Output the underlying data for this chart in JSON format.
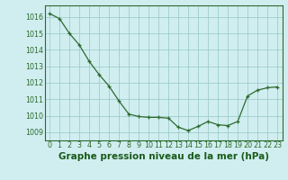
{
  "x": [
    0,
    1,
    2,
    3,
    4,
    5,
    6,
    7,
    8,
    9,
    10,
    11,
    12,
    13,
    14,
    15,
    16,
    17,
    18,
    19,
    20,
    21,
    22,
    23
  ],
  "y": [
    1016.2,
    1015.9,
    1015.0,
    1014.3,
    1013.3,
    1012.5,
    1011.8,
    1010.9,
    1010.1,
    1009.95,
    1009.9,
    1009.9,
    1009.85,
    1009.3,
    1009.1,
    1009.35,
    1009.65,
    1009.45,
    1009.4,
    1009.65,
    1011.2,
    1011.55,
    1011.7,
    1011.75
  ],
  "line_color": "#2d6a2d",
  "marker_color": "#2d6a2d",
  "bg_color": "#d0eef0",
  "grid_color": "#a0cccc",
  "xlabel": "Graphe pression niveau de la mer (hPa)",
  "xlabel_color": "#1a5a1a",
  "ylim": [
    1008.5,
    1016.7
  ],
  "yticks": [
    1009,
    1010,
    1011,
    1012,
    1013,
    1014,
    1015,
    1016
  ],
  "xticks": [
    0,
    1,
    2,
    3,
    4,
    5,
    6,
    7,
    8,
    9,
    10,
    11,
    12,
    13,
    14,
    15,
    16,
    17,
    18,
    19,
    20,
    21,
    22,
    23
  ],
  "tick_fontsize": 5.8,
  "xlabel_fontsize": 7.5
}
